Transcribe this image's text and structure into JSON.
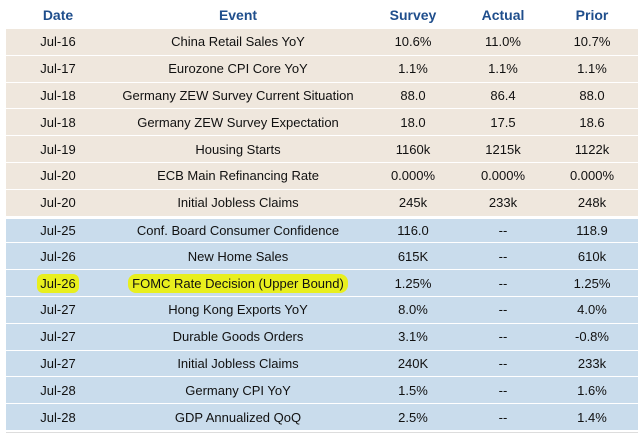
{
  "header": {
    "date": "Date",
    "event": "Event",
    "survey": "Survey",
    "actual": "Actual",
    "prior": "Prior"
  },
  "rows": [
    {
      "date": "Jul-16",
      "event": "China Retail Sales YoY",
      "survey": "10.6%",
      "actual": "11.0%",
      "prior": "10.7%"
    },
    {
      "date": "Jul-17",
      "event": "Eurozone CPI Core YoY",
      "survey": "1.1%",
      "actual": "1.1%",
      "prior": "1.1%"
    },
    {
      "date": "Jul-18",
      "event": "Germany ZEW Survey Current Situation",
      "survey": "88.0",
      "actual": "86.4",
      "prior": "88.0"
    },
    {
      "date": "Jul-18",
      "event": "Germany ZEW Survey Expectation",
      "survey": "18.0",
      "actual": "17.5",
      "prior": "18.6"
    },
    {
      "date": "Jul-19",
      "event": "Housing Starts",
      "survey": "1160k",
      "actual": "1215k",
      "prior": "1122k"
    },
    {
      "date": "Jul-20",
      "event": "ECB Main Refinancing Rate",
      "survey": "0.000%",
      "actual": "0.000%",
      "prior": "0.000%"
    },
    {
      "date": "Jul-20",
      "event": "Initial Jobless Claims",
      "survey": "245k",
      "actual": "233k",
      "prior": "248k"
    },
    {
      "date": "Jul-25",
      "event": "Conf. Board Consumer Confidence",
      "survey": "116.0",
      "actual": "--",
      "prior": "118.9"
    },
    {
      "date": "Jul-26",
      "event": "New Home Sales",
      "survey": "615K",
      "actual": "--",
      "prior": "610k"
    },
    {
      "date": "Jul-26",
      "event": "FOMC Rate Decision (Upper Bound)",
      "survey": "1.25%",
      "actual": "--",
      "prior": "1.25%"
    },
    {
      "date": "Jul-27",
      "event": "Hong Kong Exports YoY",
      "survey": "8.0%",
      "actual": "--",
      "prior": "4.0%"
    },
    {
      "date": "Jul-27",
      "event": "Durable Goods Orders",
      "survey": "3.1%",
      "actual": "--",
      "prior": "-0.8%"
    },
    {
      "date": "Jul-27",
      "event": "Initial Jobless Claims",
      "survey": "240K",
      "actual": "--",
      "prior": "233k"
    },
    {
      "date": "Jul-28",
      "event": "Germany CPI YoY",
      "survey": "1.5%",
      "actual": "--",
      "prior": "1.6%"
    },
    {
      "date": "Jul-28",
      "event": "GDP Annualized QoQ",
      "survey": "2.5%",
      "actual": "--",
      "prior": "1.4%"
    }
  ],
  "colors": {
    "header_text": "#1f4e8c",
    "past_row_bg": "#efe7dd",
    "future_row_bg": "#c9dcec",
    "highlight": "#e8ef1e"
  }
}
